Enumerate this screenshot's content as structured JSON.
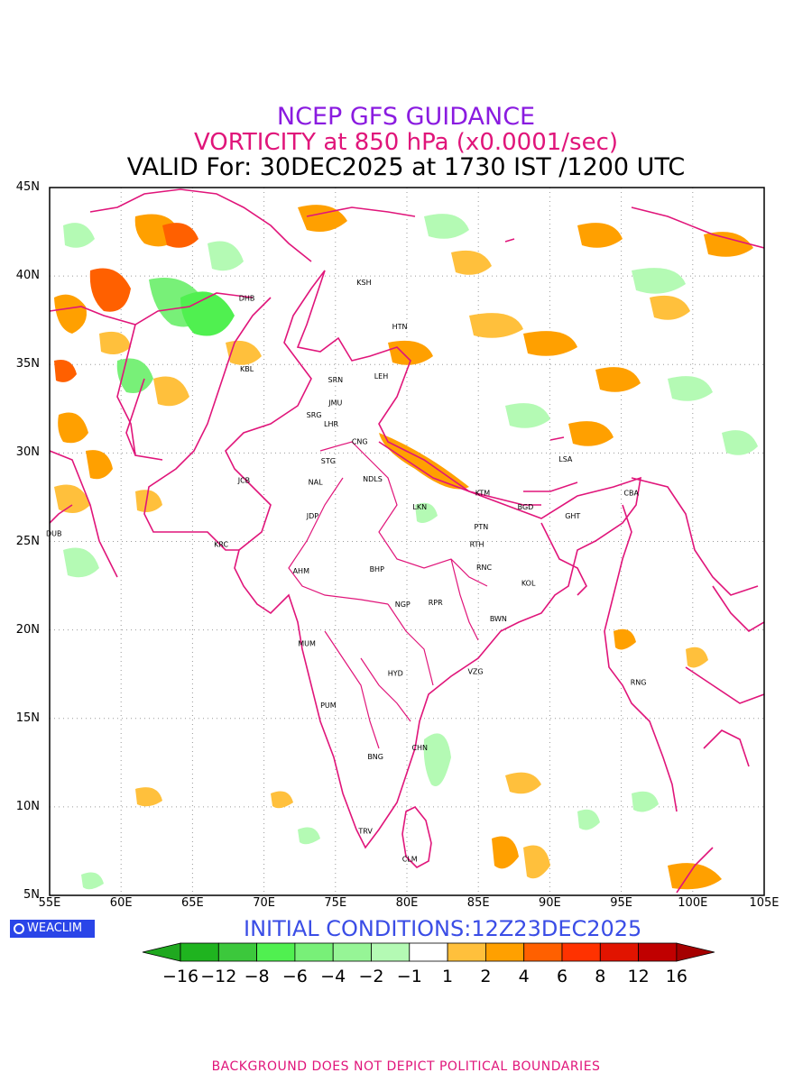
{
  "titles": {
    "line1": "NCEP GFS GUIDANCE",
    "line2": "VORTICITY at 850 hPa (x0.0001/sec)",
    "line3": "VALID For: 30DEC2025 at 1730 IST /1200 UTC"
  },
  "axes": {
    "lat_labels": [
      "45N",
      "40N",
      "35N",
      "30N",
      "25N",
      "20N",
      "15N",
      "10N",
      "5N"
    ],
    "lon_labels": [
      "55E",
      "60E",
      "65E",
      "70E",
      "75E",
      "80E",
      "85E",
      "90E",
      "95E",
      "100E",
      "105E"
    ]
  },
  "cities": [
    {
      "code": "KSH",
      "lon": 77.0,
      "lat": 39.5
    },
    {
      "code": "DHB",
      "lon": 68.8,
      "lat": 38.6
    },
    {
      "code": "HTN",
      "lon": 79.5,
      "lat": 37.0
    },
    {
      "code": "KBL",
      "lon": 68.8,
      "lat": 34.6
    },
    {
      "code": "LEH",
      "lon": 78.2,
      "lat": 34.2
    },
    {
      "code": "SRN",
      "lon": 75.0,
      "lat": 34.0
    },
    {
      "code": "JMU",
      "lon": 75.0,
      "lat": 32.7
    },
    {
      "code": "SRG",
      "lon": 73.5,
      "lat": 32.0
    },
    {
      "code": "LHR",
      "lon": 74.7,
      "lat": 31.5
    },
    {
      "code": "CNG",
      "lon": 76.7,
      "lat": 30.5
    },
    {
      "code": "LSA",
      "lon": 91.1,
      "lat": 29.5
    },
    {
      "code": "STG",
      "lon": 74.5,
      "lat": 29.4
    },
    {
      "code": "NDLS",
      "lon": 77.6,
      "lat": 28.4
    },
    {
      "code": "JCB",
      "lon": 68.6,
      "lat": 28.3
    },
    {
      "code": "NAL",
      "lon": 73.6,
      "lat": 28.2
    },
    {
      "code": "CBA",
      "lon": 95.7,
      "lat": 27.6
    },
    {
      "code": "KTM",
      "lon": 85.3,
      "lat": 27.6
    },
    {
      "code": "LKN",
      "lon": 80.9,
      "lat": 26.8
    },
    {
      "code": "BGD",
      "lon": 88.3,
      "lat": 26.8
    },
    {
      "code": "JDP",
      "lon": 73.4,
      "lat": 26.3
    },
    {
      "code": "GHT",
      "lon": 91.6,
      "lat": 26.3
    },
    {
      "code": "PTN",
      "lon": 85.2,
      "lat": 25.7
    },
    {
      "code": "DUB",
      "lon": 55.3,
      "lat": 25.3
    },
    {
      "code": "RTH",
      "lon": 84.9,
      "lat": 24.7
    },
    {
      "code": "KRC",
      "lon": 67.0,
      "lat": 24.7
    },
    {
      "code": "BHP",
      "lon": 77.9,
      "lat": 23.3
    },
    {
      "code": "AHM",
      "lon": 72.6,
      "lat": 23.2
    },
    {
      "code": "RNC",
      "lon": 85.4,
      "lat": 23.4
    },
    {
      "code": "KOL",
      "lon": 88.5,
      "lat": 22.5
    },
    {
      "code": "RPR",
      "lon": 82.0,
      "lat": 21.4
    },
    {
      "code": "NGP",
      "lon": 79.7,
      "lat": 21.3
    },
    {
      "code": "BWN",
      "lon": 86.4,
      "lat": 20.5
    },
    {
      "code": "MUM",
      "lon": 73.0,
      "lat": 19.1
    },
    {
      "code": "HYD",
      "lon": 79.2,
      "lat": 17.4
    },
    {
      "code": "VZG",
      "lon": 84.8,
      "lat": 17.5
    },
    {
      "code": "RNG",
      "lon": 96.2,
      "lat": 16.9
    },
    {
      "code": "PUM",
      "lon": 74.5,
      "lat": 15.6
    },
    {
      "code": "CHN",
      "lon": 80.9,
      "lat": 13.2
    },
    {
      "code": "BNG",
      "lon": 77.8,
      "lat": 12.7
    },
    {
      "code": "TRV",
      "lon": 77.1,
      "lat": 8.5
    },
    {
      "code": "CLM",
      "lon": 80.2,
      "lat": 6.9
    }
  ],
  "branding": {
    "logo_text": "WEACLIM"
  },
  "initial_conditions": "INITIAL CONDITIONS:12Z23DEC2025",
  "colorbar": {
    "labels": [
      "−16",
      "−12",
      "−8",
      "−6",
      "−4",
      "−2",
      "−1",
      "1",
      "2",
      "4",
      "6",
      "8",
      "12",
      "16"
    ],
    "colors": [
      "#1fa81f",
      "#1fb41f",
      "#3cc83c",
      "#50f050",
      "#78f078",
      "#96f596",
      "#b4fab4",
      "#ffffff",
      "#ffc03c",
      "#ffa000",
      "#ff6000",
      "#ff3200",
      "#e11400",
      "#c00000",
      "#a50000"
    ]
  },
  "field_colors": {
    "pos_light": "#ffc03c",
    "pos_mid": "#ffa000",
    "pos_strong": "#ff6000",
    "neg_light": "#b4fab4",
    "neg_mid": "#78f078",
    "neg_strong": "#50f050"
  },
  "boundary_color": "#e0157a",
  "footer": "BACKGROUND DOES NOT DEPICT POLITICAL BOUNDARIES"
}
